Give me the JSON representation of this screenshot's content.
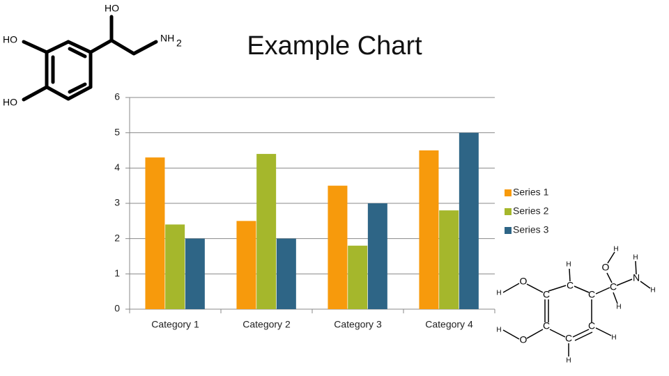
{
  "chart_data": {
    "type": "bar",
    "title": "Example Chart",
    "categories": [
      "Category 1",
      "Category 2",
      "Category 3",
      "Category 4"
    ],
    "series": [
      {
        "name": "Series 1",
        "color": "#f79a0c",
        "values": [
          4.3,
          2.5,
          3.5,
          4.5
        ]
      },
      {
        "name": "Series 2",
        "color": "#a5b72c",
        "values": [
          2.4,
          4.4,
          1.8,
          2.8
        ]
      },
      {
        "name": "Series 3",
        "color": "#2e6586",
        "values": [
          2,
          2,
          3,
          5
        ]
      }
    ],
    "ylim": [
      0,
      6
    ],
    "yticks": [
      0,
      1,
      2,
      3,
      4,
      5,
      6
    ],
    "grid": true,
    "legend": "right"
  },
  "molecule_1": {
    "labels": [
      "HO",
      "HO",
      "NH",
      "2",
      "HO"
    ]
  },
  "molecule_2": {
    "atoms": [
      "H",
      "H",
      "H",
      "O",
      "O",
      "C",
      "N",
      "C",
      "H",
      "H",
      "C",
      "C",
      "H",
      "H",
      "C",
      "C",
      "H",
      "O",
      "C",
      "H"
    ]
  }
}
